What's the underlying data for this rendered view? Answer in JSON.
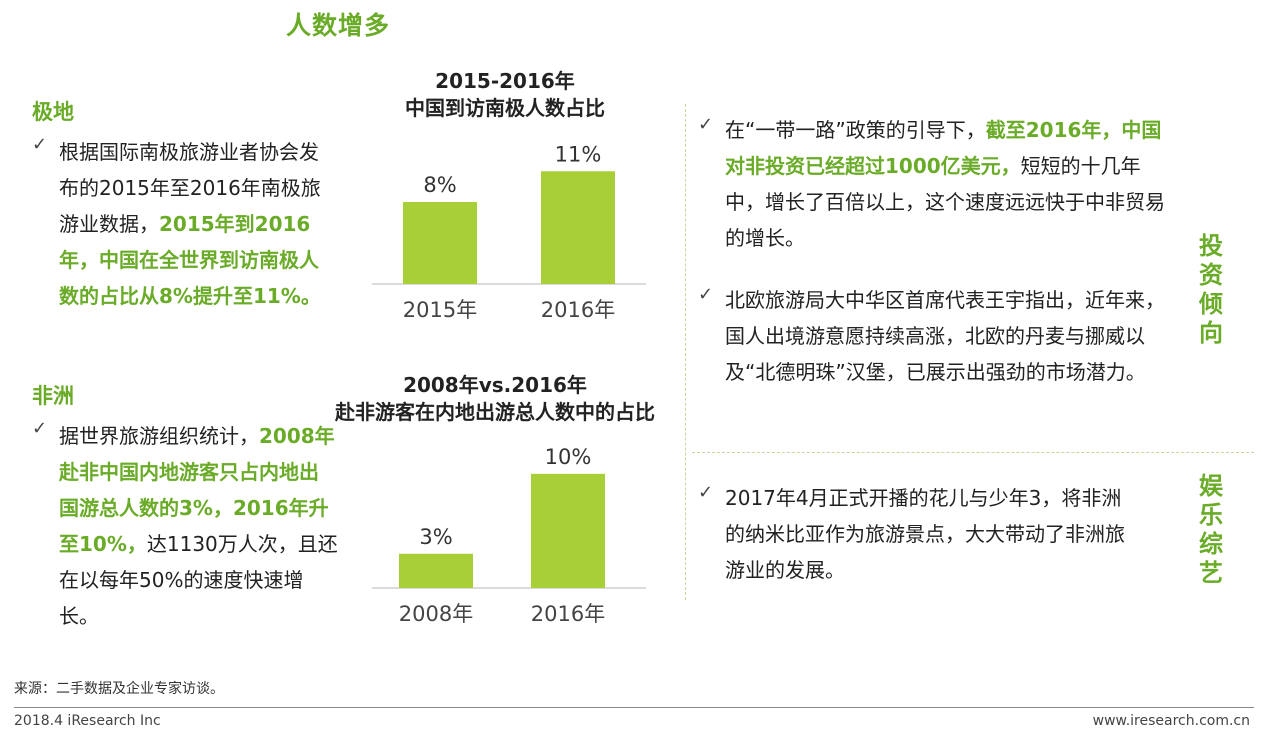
{
  "page_title": "人数增多",
  "left": {
    "sections": [
      {
        "heading": "极地",
        "paragraph": [
          {
            "text": "根据国际南极旅游业者协会发布的2015年至2016年南极旅游业数据，",
            "hl": false
          },
          {
            "text": "2015年到2016年，中国在全世界到访南极人数的占比从8%提升至11%。",
            "hl": true
          }
        ]
      },
      {
        "heading": "非洲",
        "paragraph": [
          {
            "text": "据世界旅游组织统计，",
            "hl": false
          },
          {
            "text": "2008年赴非中国内地游客只占内地出国游总人数的3%，2016年升至10%，",
            "hl": true
          },
          {
            "text": "达1130万人次，且还在以每年50%的速度快速增长。",
            "hl": false
          }
        ]
      }
    ]
  },
  "chart_data": [
    {
      "type": "bar",
      "title": "2015-2016年\n中国到访南极人数占比",
      "categories": [
        "2015年",
        "2016年"
      ],
      "values": [
        8,
        11
      ],
      "data_labels": [
        "8%",
        "11%"
      ],
      "ylim": [
        0,
        12
      ]
    },
    {
      "type": "bar",
      "title": "2008年vs.2016年\n赴非游客在内地出游总人数中的占比",
      "categories": [
        "2008年",
        "2016年"
      ],
      "values": [
        3,
        10
      ],
      "data_labels": [
        "3%",
        "10%"
      ],
      "ylim": [
        0,
        12
      ]
    }
  ],
  "right": {
    "investment": {
      "label": "投资倾向",
      "items": [
        [
          {
            "text": "在“一带一路”政策的引导下，",
            "hl": false
          },
          {
            "text": "截至2016年，中国对非投资已经超过1000亿美元，",
            "hl": true
          },
          {
            "text": "短短的十几年中，增长了百倍以上，这个速度远远快于中非贸易的增长。",
            "hl": false
          }
        ],
        [
          {
            "text": "北欧旅游局大中华区首席代表王宇指出，近年来，国人出境游意愿持续高涨，北欧的丹麦与挪威以及“北德明珠”汉堡，已展示出强劲的市场潜力。",
            "hl": false
          }
        ]
      ]
    },
    "entertainment": {
      "label": "娱乐综艺",
      "items": [
        [
          {
            "text": "2017年4月正式开播的花儿与少年3，将非洲的纳米比亚作为旅游景点，大大带动了非洲旅游业的发展。",
            "hl": false
          }
        ]
      ]
    }
  },
  "footer": {
    "source": "来源：二手数据及企业专家访谈。",
    "left": "2018.4 iResearch Inc",
    "right": "www.iresearch.com.cn"
  },
  "colors": {
    "accent": "#6aab28",
    "bar": "#a8cf38"
  },
  "check_icon": "check-icon"
}
